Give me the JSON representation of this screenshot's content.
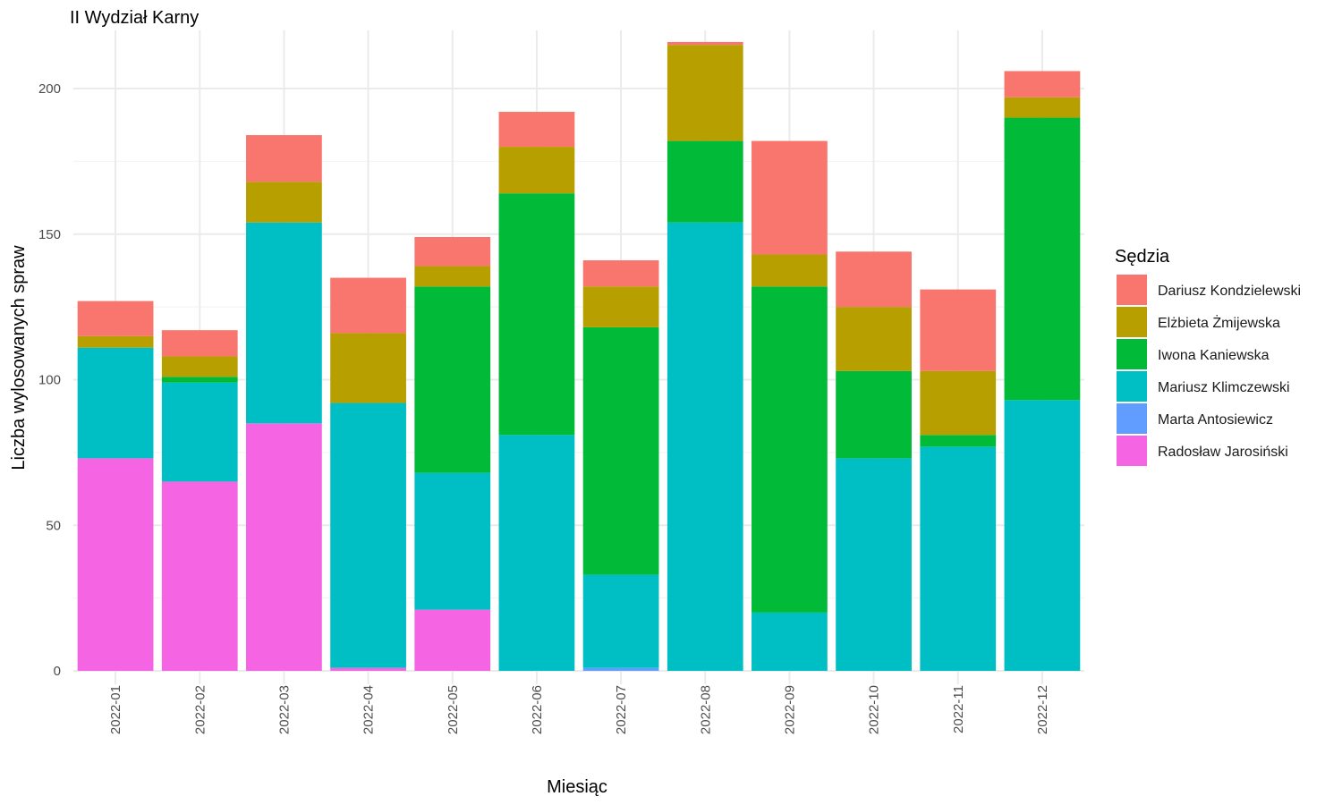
{
  "chart_data": {
    "type": "bar",
    "stacked": true,
    "title": "II Wydział Karny",
    "xlabel": "Miesiąc",
    "ylabel": "Liczba wylosowanych spraw",
    "ylim": [
      0,
      220
    ],
    "yticks": [
      0,
      50,
      100,
      150,
      200
    ],
    "grid": true,
    "legend_title": "Sędzia",
    "legend_position": "right",
    "categories": [
      "2022-01",
      "2022-02",
      "2022-03",
      "2022-04",
      "2022-05",
      "2022-06",
      "2022-07",
      "2022-08",
      "2022-09",
      "2022-10",
      "2022-11",
      "2022-12"
    ],
    "series": [
      {
        "name": "Dariusz Kondzielewski",
        "color": "#F8766D",
        "values": [
          12,
          9,
          16,
          19,
          10,
          12,
          9,
          1,
          39,
          19,
          28,
          9
        ]
      },
      {
        "name": "Elżbieta Żmijewska",
        "color": "#B79F00",
        "values": [
          4,
          7,
          14,
          24,
          7,
          16,
          14,
          33,
          11,
          22,
          22,
          7
        ]
      },
      {
        "name": "Iwona Kaniewska",
        "color": "#00BA38",
        "values": [
          0,
          2,
          0,
          0,
          64,
          83,
          85,
          28,
          112,
          30,
          4,
          97
        ]
      },
      {
        "name": "Mariusz Klimczewski",
        "color": "#00BFC4",
        "values": [
          38,
          34,
          69,
          91,
          47,
          81,
          32,
          154,
          20,
          73,
          77,
          93
        ]
      },
      {
        "name": "Marta Antosiewicz",
        "color": "#619CFF",
        "values": [
          0,
          0,
          0,
          0,
          0,
          0,
          1,
          0,
          0,
          0,
          0,
          0
        ]
      },
      {
        "name": "Radosław Jarosiński",
        "color": "#F564E3",
        "values": [
          73,
          65,
          85,
          1,
          21,
          0,
          0,
          0,
          0,
          0,
          0,
          0
        ]
      }
    ]
  }
}
